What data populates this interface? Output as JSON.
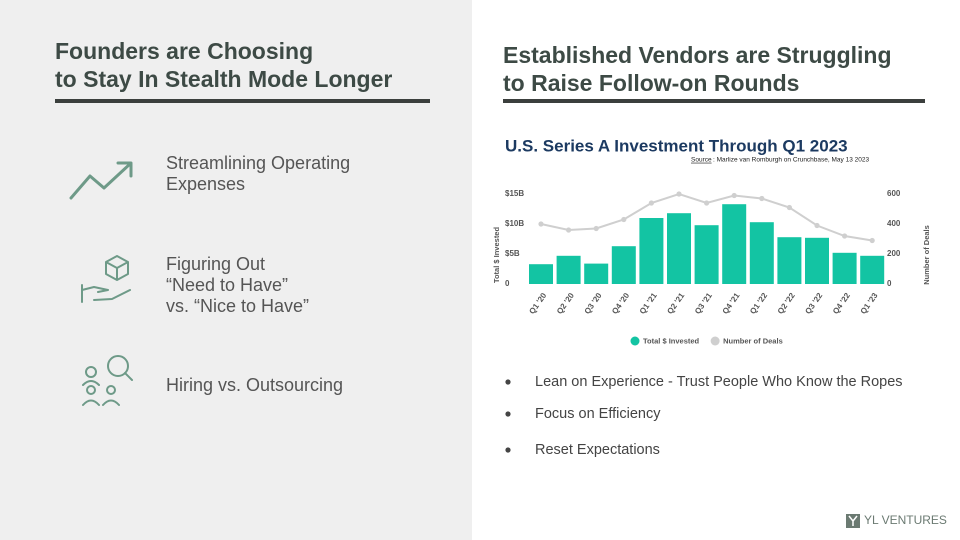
{
  "left": {
    "title": [
      "Founders are Choosing",
      "to Stay In Stealth Mode Longer"
    ],
    "items": [
      [
        "Streamlining Operating",
        "Expenses"
      ],
      [
        "Figuring Out",
        "“Need to Have”",
        "vs. “Nice to Have”"
      ],
      [
        "Hiring vs. Outsourcing"
      ]
    ]
  },
  "right": {
    "title": [
      "Established Vendors are Struggling",
      "to Raise Follow-on Rounds"
    ],
    "bullets": [
      "Lean on Experience - Trust People Who Know the Ropes",
      "Focus on Efficiency",
      "Reset Expectations"
    ],
    "logo": "YL VENTURES"
  },
  "chart_data": {
    "type": "bar",
    "title": "U.S. Series A Investment Through Q1 2023",
    "source_label": "Source",
    "source": ": Marlize van Romburgh on Crunchbase, May 13 2023",
    "categories": [
      "Q1 '20",
      "Q2 '20",
      "Q3 '20",
      "Q4 '20",
      "Q1 '21",
      "Q2 '21",
      "Q3 '21",
      "Q4 '21",
      "Q1 '22",
      "Q2 '22",
      "Q3 '22",
      "Q4 '22",
      "Q1 '23"
    ],
    "series": [
      {
        "name": "Total $ Invested",
        "type": "bar",
        "color": "#13c4a3",
        "values": [
          3.3,
          4.7,
          3.4,
          6.3,
          11,
          11.8,
          9.8,
          13.3,
          10.3,
          7.8,
          7.7,
          5.2,
          4.7
        ]
      },
      {
        "name": "Number of Deals",
        "type": "line",
        "axis": "y2",
        "color": "#cfcfcf",
        "values": [
          400,
          360,
          370,
          430,
          540,
          600,
          540,
          590,
          570,
          510,
          390,
          320,
          290
        ]
      }
    ],
    "ylabel": "Total $ Invested",
    "y2label": "Number of Deals",
    "ylim": [
      0,
      15
    ],
    "yticks": [
      0,
      {
        "value": 5,
        "label": "$5B"
      },
      {
        "value": 10,
        "label": "$10B"
      },
      {
        "value": 15,
        "label": "$15B"
      }
    ],
    "y2lim": [
      0,
      600
    ],
    "y2ticks": [
      0,
      200,
      400,
      600
    ],
    "grid": false,
    "legend": "bottom"
  }
}
